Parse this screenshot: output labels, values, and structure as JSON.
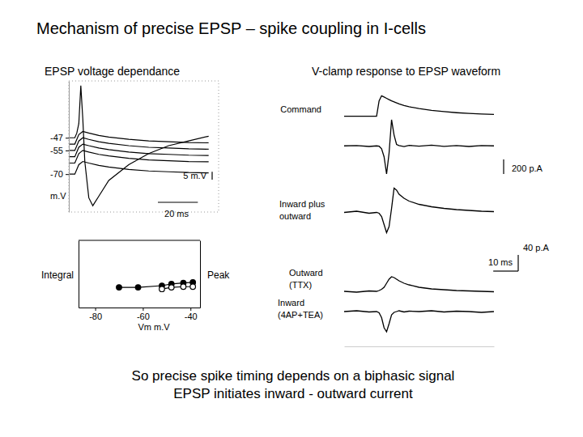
{
  "title": "Mechanism of precise EPSP – spike coupling in I-cells",
  "caption": [
    "So precise spike timing depends on a biphasic signal",
    "EPSP initiates inward - outward current"
  ],
  "chart_data": [
    {
      "type": "line",
      "title": "EPSP voltage dependance",
      "color": "#000000",
      "xlim": [
        0,
        75
      ],
      "ylim": [
        -94,
        -11
      ],
      "yticks": [
        -47,
        -55,
        -70
      ],
      "ylabel": "m.V",
      "tick_labels": "y",
      "x_scale_bar": {
        "value": 20,
        "label": "20 ms"
      },
      "y_scale_bar": {
        "value": 5,
        "label": "5 m.V"
      },
      "series": [
        {
          "x": [
            0,
            3,
            5,
            7,
            10,
            15,
            20,
            30,
            40,
            50,
            60,
            70
          ],
          "values": [
            -70,
            -70,
            -64,
            -62,
            -63,
            -64.5,
            -65.5,
            -67,
            -68,
            -68.5,
            -69,
            -69.2
          ]
        },
        {
          "x": [
            0,
            3,
            5,
            7,
            10,
            15,
            20,
            30,
            40,
            50,
            60,
            70
          ],
          "values": [
            -63,
            -63,
            -57,
            -55,
            -56,
            -57.5,
            -58.5,
            -60,
            -61,
            -61.5,
            -62,
            -62.2
          ]
        },
        {
          "x": [
            0,
            3,
            5,
            7,
            10,
            15,
            20,
            30,
            40,
            50,
            60,
            70
          ],
          "values": [
            -59,
            -59,
            -53,
            -51,
            -52,
            -53.5,
            -54.5,
            -56,
            -57,
            -57.5,
            -58,
            -58.2
          ]
        },
        {
          "x": [
            0,
            3,
            5,
            7,
            10,
            15,
            20,
            30,
            40,
            50,
            60,
            70
          ],
          "values": [
            -55,
            -55,
            -49,
            -47,
            -48,
            -49.5,
            -50.5,
            -52,
            -53,
            -53.5,
            -54,
            -54.2
          ]
        },
        {
          "x": [
            0,
            3,
            5,
            7,
            10,
            15,
            20,
            30,
            40,
            50,
            60,
            70
          ],
          "values": [
            -51,
            -51,
            -45,
            -43,
            -44,
            -45.5,
            -46.5,
            -48,
            -49,
            -49.5,
            -50,
            -50.2
          ]
        },
        {
          "x": [
            0,
            3,
            4,
            5,
            6,
            7,
            8,
            10,
            12,
            15,
            20,
            30,
            40,
            50,
            60,
            70
          ],
          "values": [
            -47,
            -47,
            -44,
            -38,
            -14,
            -35,
            -62,
            -85,
            -90,
            -84,
            -74,
            -64,
            -57,
            -52,
            -49,
            -46
          ]
        }
      ]
    },
    {
      "type": "line",
      "color": "#000000",
      "line_style": "solid",
      "xlim": [
        -87,
        -36
      ],
      "xticks": [
        -80,
        -60,
        -40
      ],
      "ylim": [
        0,
        2
      ],
      "y2lim": [
        0,
        2
      ],
      "xlabel": "Vm  m.V",
      "ylabel": "Integral",
      "y2label": "Peak",
      "tick_labels": "x",
      "series": [
        {
          "x": [
            -70,
            -62,
            -52,
            -48,
            -43,
            -39
          ],
          "values": [
            0.6,
            0.6,
            0.65,
            0.7,
            0.73,
            0.75
          ],
          "marker": "circle"
        },
        {
          "x": [
            -52,
            -48,
            -43,
            -39
          ],
          "values": [
            0.55,
            0.6,
            0.62,
            0.62
          ],
          "marker": "open-circle",
          "axis": "y2"
        }
      ]
    },
    {
      "type": "line",
      "title": "V-clamp response to EPSP waveform",
      "color": "#000000",
      "xlim": [
        0,
        60
      ],
      "tick_labels": false,
      "x": [
        0,
        5,
        10,
        13,
        14,
        15,
        16,
        17,
        18,
        19,
        20,
        21,
        22,
        24,
        26,
        30,
        35,
        40,
        45,
        50,
        55,
        60
      ],
      "x_scale_bar": {
        "value": 10,
        "label": "10 ms"
      },
      "series": [
        {
          "name": "Command",
          "ylim": [
            -72,
            -60
          ],
          "values": [
            -70,
            -70,
            -70,
            -70,
            -64,
            -62,
            -62.5,
            -63,
            -63.5,
            -64,
            -64.4,
            -64.8,
            -65.2,
            -65.8,
            -66.3,
            -67,
            -67.7,
            -68.2,
            -68.6,
            -68.9,
            -69.1,
            -69.3
          ]
        },
        {
          "ylim": [
            -500,
            450
          ],
          "scale_bar": {
            "value": 200,
            "label": "200 p.A"
          },
          "values": [
            0,
            5,
            -8,
            0,
            -5,
            -40,
            -150,
            -388,
            -100,
            361,
            150,
            20,
            5,
            -10,
            8,
            -5,
            10,
            -6,
            4,
            -8,
            5,
            0
          ]
        },
        {
          "name": "Inward plus\noutward",
          "ylim": [
            -75,
            75
          ],
          "scale_bar": {
            "value": 40,
            "label": "40 p.A"
          },
          "values": [
            0,
            3,
            -2,
            0,
            -2,
            -10,
            -30,
            -50,
            -35,
            10,
            60,
            55,
            45,
            35,
            28,
            20,
            14,
            10,
            7,
            5,
            3,
            2
          ]
        },
        {
          "name": "Outward\n(TTX)",
          "ylim": [
            -10,
            60
          ],
          "values": [
            0,
            -2,
            1,
            0,
            2,
            5,
            10,
            20,
            30,
            36,
            34,
            30,
            26,
            20,
            16,
            10,
            6,
            4,
            2,
            1,
            0,
            -1
          ]
        },
        {
          "name": "Inward\n(4AP+TEA)",
          "ylim": [
            -70,
            26
          ],
          "values": [
            0,
            2,
            -1,
            0,
            -3,
            -15,
            -40,
            -50,
            -30,
            -8,
            -2,
            0,
            2,
            -1,
            1,
            0,
            2,
            -1,
            1,
            0,
            -2,
            0
          ]
        }
      ]
    }
  ]
}
